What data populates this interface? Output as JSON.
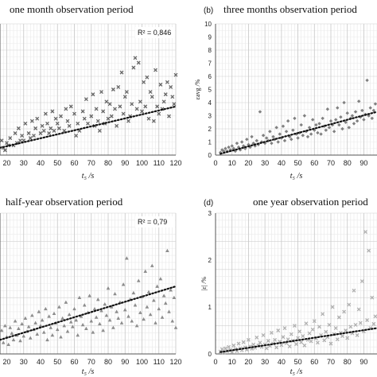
{
  "chart_data": [
    {
      "type": "scatter",
      "panel": "",
      "title": "one month observation period",
      "xlabel": "t₅ /s",
      "ylabel": "",
      "r2_label": "R² = 0,846",
      "xlim": [
        16,
        120
      ],
      "ylim": [
        0,
        5.4
      ],
      "xticks": [
        20,
        30,
        40,
        50,
        60,
        70,
        80,
        90,
        100,
        110,
        120
      ],
      "yticks": [],
      "trend": {
        "x0": 16,
        "y0": 0.3,
        "x1": 120,
        "y1": 2.0
      },
      "marker": "x",
      "color": "#666666",
      "x": [
        17,
        18,
        19,
        20,
        21,
        22,
        24,
        25,
        26,
        27,
        28,
        29,
        30,
        31,
        33,
        34,
        35,
        36,
        37,
        38,
        40,
        41,
        42,
        43,
        44,
        45,
        46,
        47,
        48,
        49,
        50,
        51,
        52,
        54,
        55,
        56,
        57,
        58,
        60,
        61,
        62,
        63,
        65,
        66,
        67,
        68,
        70,
        71,
        72,
        73,
        74,
        75,
        76,
        77,
        78,
        79,
        80,
        81,
        82,
        83,
        84,
        85,
        86,
        87,
        88,
        89,
        90,
        91,
        92,
        93,
        94,
        95,
        96,
        97,
        98,
        99,
        100,
        101,
        102,
        103,
        104,
        105,
        106,
        107,
        108,
        109,
        110,
        111,
        112,
        113,
        114,
        115,
        116,
        117,
        118,
        119,
        120
      ],
      "y": [
        0.6,
        0.3,
        0.2,
        0.5,
        0.4,
        0.7,
        0.4,
        0.9,
        0.5,
        1.1,
        0.6,
        0.8,
        0.6,
        1.3,
        0.9,
        0.7,
        1.4,
        0.8,
        1.1,
        1.5,
        0.9,
        1.2,
        1.0,
        1.7,
        1.3,
        0.9,
        1.1,
        1.8,
        1.0,
        1.5,
        1.3,
        1.1,
        1.6,
        1.0,
        1.9,
        1.4,
        1.2,
        2.0,
        1.7,
        0.8,
        1.3,
        1.0,
        1.8,
        1.5,
        2.3,
        1.3,
        1.6,
        2.5,
        1.2,
        1.9,
        1.4,
        1.0,
        2.6,
        1.8,
        1.3,
        2.2,
        1.5,
        2.1,
        1.6,
        2.7,
        1.9,
        1.2,
        2.8,
        2.0,
        3.4,
        1.7,
        2.4,
        2.6,
        1.4,
        1.6,
        2.1,
        3.6,
        4.0,
        1.9,
        3.8,
        2.2,
        1.8,
        3.0,
        2.0,
        3.2,
        1.5,
        2.6,
        2.4,
        1.4,
        3.5,
        2.0,
        1.7,
        2.9,
        1.9,
        2.2,
        2.5,
        3.0,
        1.6,
        2.8,
        2.4,
        2.1,
        3.3
      ]
    },
    {
      "type": "scatter",
      "panel": "(b)",
      "title": "three months observation period",
      "xlabel": "t₅ /s",
      "ylabel": "εavg /%",
      "r2_label": "",
      "xlim": [
        0,
        98
      ],
      "ylim": [
        0,
        10
      ],
      "xticks": [
        0,
        10,
        20,
        30,
        40,
        50,
        60,
        70,
        80,
        90
      ],
      "yticks": [
        0,
        1,
        2,
        3,
        4,
        5,
        6,
        7,
        8,
        9,
        10
      ],
      "trend": {
        "x0": 3,
        "y0": 0.1,
        "x1": 98,
        "y1": 3.3
      },
      "marker": "diamond",
      "color": "#808080",
      "x": [
        3,
        4,
        5,
        6,
        7,
        8,
        9,
        10,
        11,
        12,
        13,
        14,
        15,
        16,
        17,
        18,
        19,
        20,
        21,
        22,
        23,
        24,
        25,
        26,
        27,
        28,
        29,
        30,
        31,
        32,
        33,
        34,
        35,
        36,
        37,
        38,
        39,
        40,
        41,
        42,
        43,
        44,
        45,
        46,
        47,
        48,
        49,
        50,
        51,
        52,
        53,
        54,
        55,
        56,
        57,
        58,
        59,
        60,
        61,
        62,
        63,
        64,
        65,
        66,
        67,
        68,
        69,
        70,
        71,
        72,
        73,
        74,
        75,
        76,
        77,
        78,
        79,
        80,
        81,
        82,
        83,
        84,
        85,
        86,
        87,
        88,
        89,
        90,
        91,
        92,
        93,
        94,
        95,
        96,
        97
      ],
      "y": [
        0.2,
        0.4,
        0.3,
        0.5,
        0.3,
        0.6,
        0.4,
        0.7,
        0.5,
        0.3,
        0.9,
        0.6,
        0.4,
        1.0,
        0.7,
        0.5,
        1.2,
        0.8,
        0.6,
        1.4,
        0.9,
        0.7,
        1.1,
        0.8,
        3.3,
        1.0,
        1.5,
        0.9,
        1.3,
        1.1,
        1.8,
        0.9,
        1.4,
        1.2,
        2.1,
        1.0,
        1.6,
        1.3,
        2.2,
        1.1,
        1.8,
        2.6,
        1.4,
        1.2,
        1.9,
        2.8,
        1.6,
        1.3,
        1.7,
        2.3,
        1.5,
        3.0,
        1.8,
        1.4,
        2.1,
        1.6,
        2.7,
        1.9,
        2.3,
        1.7,
        2.4,
        1.6,
        2.8,
        2.2,
        1.9,
        3.5,
        2.1,
        2.6,
        2.3,
        1.8,
        2.7,
        3.6,
        2.3,
        2.9,
        2.0,
        4.0,
        2.5,
        3.2,
        2.1,
        2.8,
        3.0,
        2.4,
        3.3,
        2.6,
        4.1,
        2.9,
        3.4,
        2.7,
        3.1,
        5.7,
        3.0,
        3.6,
        2.8,
        3.4,
        3.9
      ]
    },
    {
      "type": "scatter",
      "panel": "",
      "title": "half-year observation period",
      "xlabel": "t₅ /s",
      "ylabel": "",
      "r2_label": "R² = 0,79",
      "xlim": [
        16,
        120
      ],
      "ylim": [
        0,
        1.5
      ],
      "xticks": [
        20,
        30,
        40,
        50,
        60,
        70,
        80,
        90,
        100,
        110,
        120
      ],
      "yticks": [],
      "trend": {
        "x0": 16,
        "y0": 0.15,
        "x1": 120,
        "y1": 0.72
      },
      "marker": "triangle",
      "color": "#8c8c8c",
      "x": [
        17,
        18,
        19,
        20,
        21,
        22,
        23,
        24,
        25,
        26,
        27,
        28,
        29,
        30,
        31,
        32,
        33,
        34,
        35,
        36,
        37,
        38,
        39,
        40,
        41,
        42,
        43,
        44,
        45,
        46,
        47,
        48,
        49,
        50,
        51,
        52,
        53,
        54,
        55,
        56,
        57,
        58,
        59,
        60,
        61,
        62,
        63,
        64,
        65,
        66,
        67,
        68,
        69,
        70,
        71,
        72,
        73,
        74,
        75,
        76,
        77,
        78,
        79,
        80,
        81,
        82,
        83,
        84,
        85,
        86,
        87,
        88,
        89,
        90,
        91,
        92,
        93,
        94,
        95,
        96,
        97,
        98,
        99,
        100,
        101,
        102,
        103,
        104,
        105,
        106,
        107,
        108,
        109,
        110,
        111,
        112,
        113,
        114,
        115,
        116,
        117,
        118,
        119,
        120
      ],
      "y": [
        0.25,
        0.12,
        0.3,
        0.18,
        0.1,
        0.28,
        0.22,
        0.15,
        0.35,
        0.2,
        0.27,
        0.14,
        0.32,
        0.19,
        0.38,
        0.24,
        0.29,
        0.17,
        0.41,
        0.26,
        0.33,
        0.21,
        0.45,
        0.3,
        0.36,
        0.23,
        0.48,
        0.15,
        0.4,
        0.28,
        0.2,
        0.43,
        0.33,
        0.26,
        0.5,
        0.18,
        0.38,
        0.3,
        0.55,
        0.24,
        0.42,
        0.34,
        0.29,
        0.48,
        0.36,
        0.2,
        0.6,
        0.4,
        0.31,
        0.52,
        0.27,
        0.44,
        0.62,
        0.35,
        0.23,
        0.48,
        0.39,
        0.58,
        0.32,
        0.46,
        0.25,
        0.53,
        0.41,
        0.7,
        0.36,
        0.5,
        0.28,
        0.64,
        0.45,
        0.38,
        0.55,
        0.33,
        0.74,
        0.47,
        1.02,
        0.4,
        0.58,
        0.35,
        0.65,
        0.52,
        0.3,
        0.78,
        0.44,
        0.61,
        0.37,
        0.88,
        0.5,
        0.66,
        0.42,
        0.94,
        0.57,
        0.33,
        0.72,
        0.48,
        0.8,
        0.39,
        0.62,
        0.54,
        1.1,
        0.45,
        0.68,
        0.35,
        0.6,
        0.28
      ]
    },
    {
      "type": "scatter",
      "panel": "(d)",
      "title": "one year observation period",
      "xlabel": "t₅ /s",
      "ylabel": "|ε| /%",
      "r2_label": "",
      "xlim": [
        0,
        98
      ],
      "ylim": [
        0,
        3
      ],
      "xticks": [
        0,
        10,
        20,
        30,
        40,
        50,
        60,
        70,
        80,
        90
      ],
      "yticks": [
        0,
        1,
        2,
        3
      ],
      "trend": {
        "x0": 3,
        "y0": 0.04,
        "x1": 98,
        "y1": 0.55
      },
      "marker": "x",
      "color": "#b0b0b0",
      "x": [
        3,
        4,
        5,
        6,
        7,
        8,
        9,
        10,
        11,
        12,
        13,
        14,
        15,
        16,
        17,
        18,
        19,
        20,
        21,
        22,
        23,
        24,
        25,
        26,
        27,
        28,
        29,
        30,
        31,
        32,
        33,
        34,
        35,
        36,
        37,
        38,
        39,
        40,
        41,
        42,
        43,
        44,
        45,
        46,
        47,
        48,
        49,
        50,
        51,
        52,
        53,
        54,
        55,
        56,
        57,
        58,
        59,
        60,
        61,
        62,
        63,
        64,
        65,
        66,
        67,
        68,
        69,
        70,
        71,
        72,
        73,
        74,
        75,
        76,
        77,
        78,
        79,
        80,
        81,
        82,
        83,
        84,
        85,
        86,
        87,
        88,
        89,
        90,
        91,
        92,
        93,
        94,
        95,
        96,
        97
      ],
      "y": [
        0.05,
        0.1,
        0.03,
        0.12,
        0.06,
        0.15,
        0.08,
        0.04,
        0.18,
        0.1,
        0.06,
        0.22,
        0.12,
        0.08,
        0.25,
        0.14,
        0.09,
        0.3,
        0.16,
        0.11,
        0.2,
        0.13,
        0.35,
        0.18,
        0.24,
        0.15,
        0.4,
        0.2,
        0.12,
        0.28,
        0.17,
        0.45,
        0.22,
        0.3,
        0.14,
        0.5,
        0.26,
        0.19,
        0.36,
        0.55,
        0.23,
        0.31,
        0.16,
        0.42,
        0.28,
        0.6,
        0.21,
        0.34,
        0.48,
        0.25,
        0.38,
        0.18,
        0.65,
        0.3,
        0.44,
        0.27,
        0.52,
        0.7,
        0.33,
        0.24,
        0.58,
        0.4,
        0.85,
        0.29,
        0.47,
        0.36,
        0.62,
        0.22,
        1.0,
        0.42,
        0.55,
        0.31,
        0.78,
        0.45,
        0.38,
        0.9,
        0.5,
        0.34,
        1.05,
        0.58,
        0.44,
        1.35,
        0.62,
        0.4,
        0.95,
        0.66,
        1.55,
        0.48,
        2.6,
        0.72,
        2.2,
        0.55,
        1.2,
        0.64,
        0.8
      ]
    }
  ]
}
